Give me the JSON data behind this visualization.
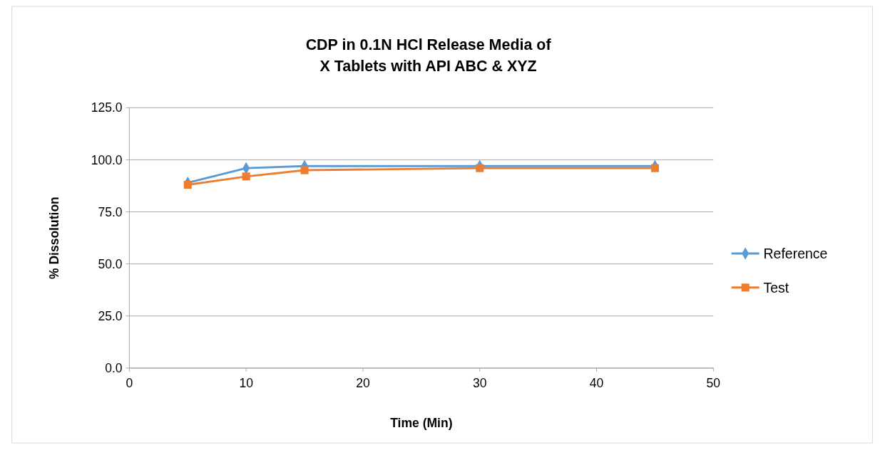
{
  "chart_data": {
    "type": "line",
    "title": "CDP in 0.1N HCl Release Media of\nX Tablets with API ABC & XYZ",
    "xlabel": "Time (Min)",
    "ylabel": "% Dissolution",
    "x": [
      5,
      10,
      15,
      30,
      45
    ],
    "xlim": [
      0,
      50
    ],
    "xticks": [
      0,
      10,
      20,
      30,
      40,
      50
    ],
    "ylim": [
      0,
      125
    ],
    "yticks": [
      {
        "value": 0,
        "label": "0.0"
      },
      {
        "value": 25,
        "label": "25.0"
      },
      {
        "value": 50,
        "label": "50.0"
      },
      {
        "value": 75,
        "label": "75.0"
      },
      {
        "value": 100,
        "label": "100.0"
      },
      {
        "value": 125,
        "label": "125.0"
      }
    ],
    "grid": "y",
    "legend": "right",
    "series": [
      {
        "name": "Reference",
        "color": "#5b9bd5",
        "marker": "diamond",
        "values": [
          89,
          96,
          97,
          97,
          97
        ]
      },
      {
        "name": "Test",
        "color": "#ed7d31",
        "marker": "square",
        "values": [
          88,
          92,
          95,
          96,
          96
        ]
      }
    ]
  }
}
